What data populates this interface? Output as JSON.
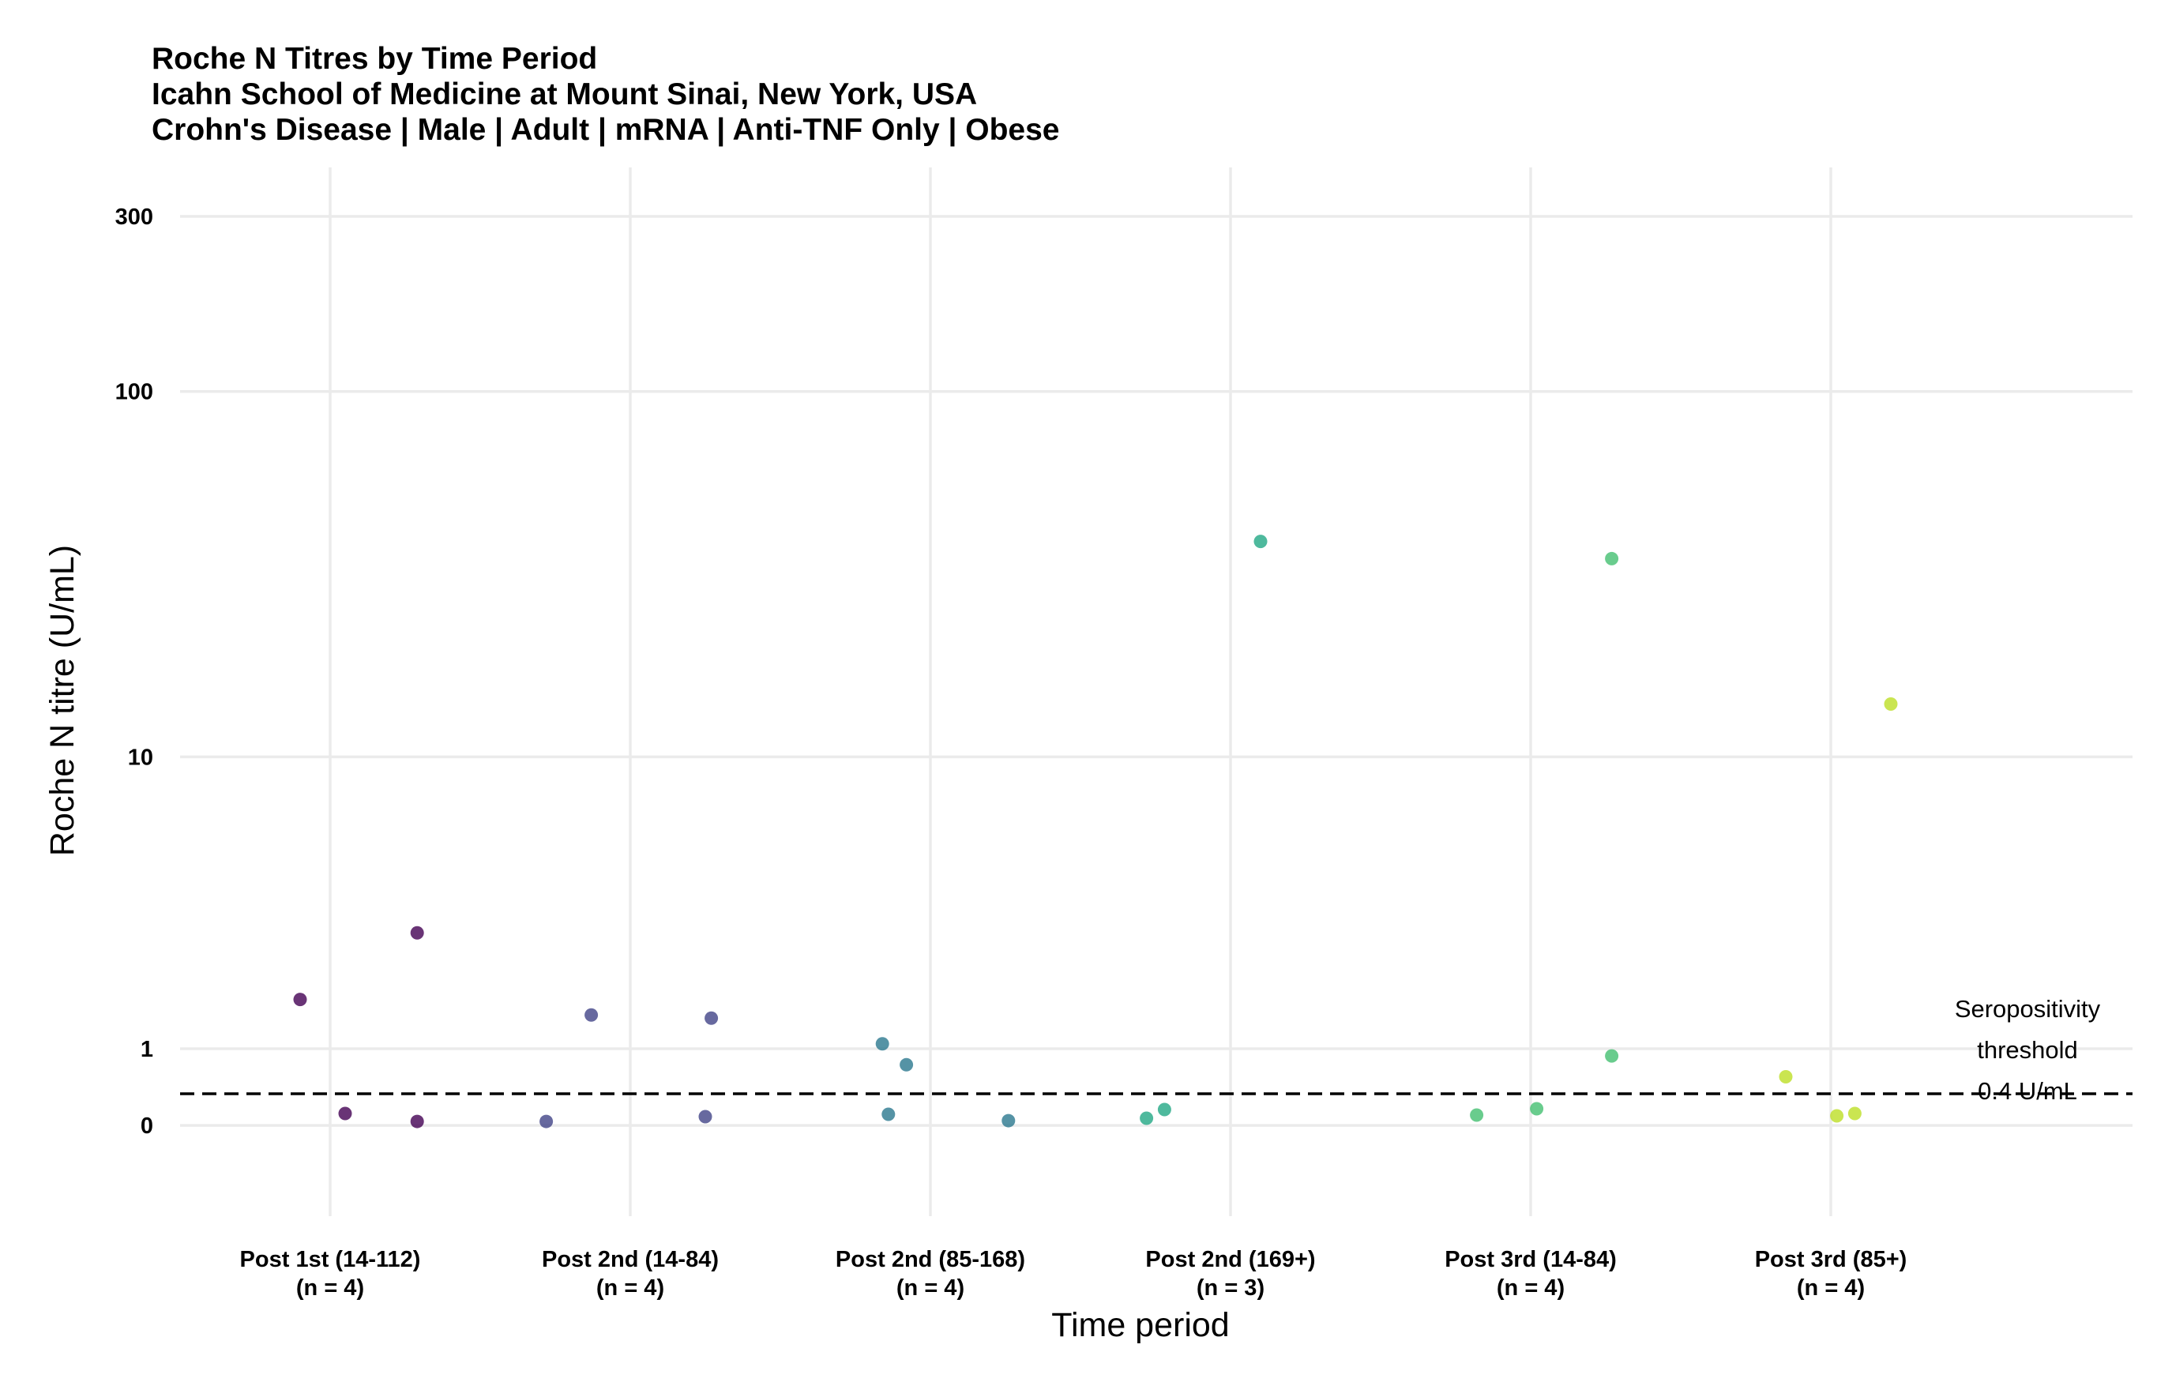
{
  "chart_data": {
    "type": "scatter",
    "title": "Roche N Titres by Time Period",
    "subtitle_lines": [
      "Icahn School of Medicine at Mount Sinai, New York, USA",
      "Crohn's Disease | Male | Adult | mRNA | Anti-TNF Only | Obese"
    ],
    "xlabel": "Time period",
    "ylabel": "Roche N titre (U/mL)",
    "y_scale": "pseudo-log",
    "y_ticks": [
      0,
      1,
      10,
      100,
      300
    ],
    "y_tick_labels": [
      "0",
      "1",
      "10",
      "100",
      "300"
    ],
    "ylim": [
      -0.05,
      400
    ],
    "grid": true,
    "legend": "none",
    "categories": [
      {
        "line1": "Post 1st (14-112)",
        "line2": "(n = 4)"
      },
      {
        "line1": "Post 2nd (14-84)",
        "line2": "(n = 4)"
      },
      {
        "line1": "Post 2nd (85-168)",
        "line2": "(n = 4)"
      },
      {
        "line1": "Post 2nd (169+)",
        "line2": "(n = 3)"
      },
      {
        "line1": "Post 3rd (14-84)",
        "line2": "(n = 4)"
      },
      {
        "line1": "Post 3rd (85+)",
        "line2": "(n = 4)"
      }
    ],
    "series_colors": [
      "#440154",
      "#3b528b",
      "#21908c",
      "#21908c",
      "#5dc863",
      "#bddf26"
    ],
    "point_colors": [
      "#440154",
      "#414487",
      "#2a788e",
      "#22a884",
      "#44bf70",
      "#bddf26"
    ],
    "points": [
      {
        "category": 0,
        "jitter": -0.1,
        "y": 1.75
      },
      {
        "category": 0,
        "jitter": 0.29,
        "y": 3.05
      },
      {
        "category": 0,
        "jitter": 0.05,
        "y": 0.15
      },
      {
        "category": 0,
        "jitter": 0.29,
        "y": 0.05
      },
      {
        "category": 1,
        "jitter": -0.13,
        "y": 1.5
      },
      {
        "category": 1,
        "jitter": 0.27,
        "y": 1.45
      },
      {
        "category": 1,
        "jitter": -0.28,
        "y": 0.05
      },
      {
        "category": 1,
        "jitter": 0.25,
        "y": 0.11
      },
      {
        "category": 2,
        "jitter": -0.16,
        "y": 1.07
      },
      {
        "category": 2,
        "jitter": -0.08,
        "y": 0.78
      },
      {
        "category": 2,
        "jitter": -0.14,
        "y": 0.14
      },
      {
        "category": 2,
        "jitter": 0.26,
        "y": 0.06
      },
      {
        "category": 3,
        "jitter": 0.1,
        "y": 39
      },
      {
        "category": 3,
        "jitter": -0.28,
        "y": 0.09
      },
      {
        "category": 3,
        "jitter": -0.22,
        "y": 0.2
      },
      {
        "category": 4,
        "jitter": 0.27,
        "y": 35
      },
      {
        "category": 4,
        "jitter": 0.27,
        "y": 0.9
      },
      {
        "category": 4,
        "jitter": -0.18,
        "y": 0.13
      },
      {
        "category": 4,
        "jitter": 0.02,
        "y": 0.21
      },
      {
        "category": 5,
        "jitter": 0.2,
        "y": 14
      },
      {
        "category": 5,
        "jitter": -0.15,
        "y": 0.62
      },
      {
        "category": 5,
        "jitter": 0.02,
        "y": 0.12
      },
      {
        "category": 5,
        "jitter": 0.08,
        "y": 0.15
      }
    ],
    "threshold": {
      "value": 0.4,
      "label_lines": [
        "Seropositivity",
        "threshold",
        "0.4 U/mL"
      ]
    }
  }
}
